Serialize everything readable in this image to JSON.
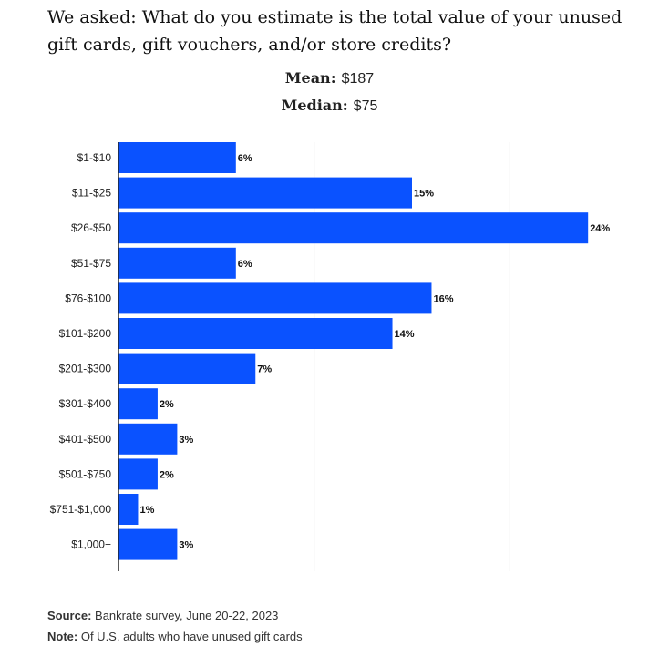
{
  "header": {
    "title": "We asked: What do you estimate is the total value of your unused gift cards, gift vouchers, and/or store credits?",
    "mean_label": "Mean:",
    "mean_value": "$187",
    "median_label": "Median:",
    "median_value": "$75"
  },
  "chart_data": {
    "type": "bar",
    "orientation": "horizontal",
    "categories": [
      "$1-$10",
      "$11-$25",
      "$26-$50",
      "$51-$75",
      "$76-$100",
      "$101-$200",
      "$201-$300",
      "$301-$400",
      "$401-$500",
      "$501-$750",
      "$751-$1,000",
      "$1,000+"
    ],
    "values": [
      6,
      15,
      24,
      6,
      16,
      14,
      7,
      2,
      3,
      2,
      1,
      3
    ],
    "value_labels": [
      "6%",
      "15%",
      "24%",
      "6%",
      "16%",
      "14%",
      "7%",
      "2%",
      "3%",
      "2%",
      "1%",
      "3%"
    ],
    "xlim": [
      0,
      30
    ],
    "gridlines_at": [
      10,
      20
    ],
    "grid": true,
    "bar_color": "#0a52ff"
  },
  "footer": {
    "source_label": "Source:",
    "source_text": "Bankrate survey, June 20-22, 2023",
    "note_label": "Note:",
    "note_text": "Of U.S. adults who have unused gift cards"
  }
}
